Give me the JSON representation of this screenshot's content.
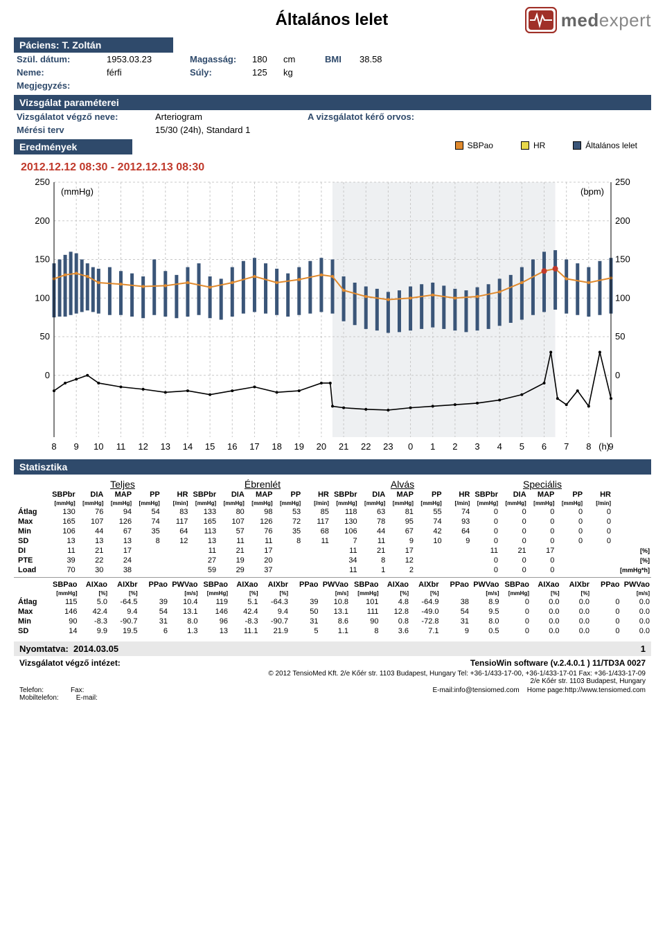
{
  "colors": {
    "bar_bg": "#2f4a6b",
    "sbpao": "#e08a2e",
    "hr": "#e8d84a",
    "general": "#3a5578",
    "range_text": "#c0392b",
    "logo_box": "#a03028",
    "grid": "#c8c8c8"
  },
  "header": {
    "title": "Általános lelet",
    "logo_text_a": "med",
    "logo_text_b": "expert"
  },
  "patient": {
    "bar": "Páciens: T. Zoltán",
    "birth_lbl": "Szül. dátum:",
    "birth": "1953.03.23",
    "gender_lbl": "Neme:",
    "gender": "férfi",
    "height_lbl": "Magasság:",
    "height": "180",
    "height_unit": "cm",
    "weight_lbl": "Súly:",
    "weight": "125",
    "weight_unit": "kg",
    "bmi_lbl": "BMI",
    "bmi": "38.58",
    "note_lbl": "Megjegyzés:"
  },
  "exam": {
    "bar": "Vizsgálat paraméterei",
    "examiner_lbl": "Vizsgálatot végző neve:",
    "examiner": "Arteriogram",
    "doctor_lbl": "A vizsgálatot kérő orvos:",
    "plan_lbl": "Mérési terv",
    "plan": "15/30 (24h), Standard 1"
  },
  "results": {
    "bar": "Eredmények",
    "legend": [
      {
        "label": "SBPao",
        "color": "#e08a2e"
      },
      {
        "label": "HR",
        "color": "#e8d84a"
      },
      {
        "label": "Általános lelet",
        "color": "#3a5578"
      }
    ]
  },
  "chart": {
    "range": "2012.12.12 08:30 - 2012.12.13 08:30",
    "left_unit": "(mmHg)",
    "right_unit": "(bpm)",
    "x_unit": "(h)",
    "xlim": [
      8,
      33
    ],
    "x_ticks": [
      8,
      9,
      10,
      11,
      12,
      13,
      14,
      15,
      16,
      17,
      18,
      19,
      20,
      21,
      22,
      23,
      0,
      1,
      2,
      3,
      4,
      5,
      6,
      7,
      8,
      9
    ],
    "left_ylim": [
      -80,
      250
    ],
    "left_ticks": [
      0,
      50,
      100,
      150,
      200,
      250
    ],
    "right_ylim": [
      -80,
      250
    ],
    "right_ticks": [
      0,
      50,
      100,
      150,
      200,
      250
    ],
    "shade": [
      20.5,
      30.5
    ],
    "bars": [
      {
        "x": 8.0,
        "lo": 75,
        "hi": 145
      },
      {
        "x": 8.25,
        "lo": 76,
        "hi": 150
      },
      {
        "x": 8.5,
        "lo": 76,
        "hi": 156
      },
      {
        "x": 8.75,
        "lo": 78,
        "hi": 160
      },
      {
        "x": 9.0,
        "lo": 80,
        "hi": 158
      },
      {
        "x": 9.25,
        "lo": 82,
        "hi": 150
      },
      {
        "x": 9.5,
        "lo": 84,
        "hi": 145
      },
      {
        "x": 9.75,
        "lo": 82,
        "hi": 140
      },
      {
        "x": 10.0,
        "lo": 80,
        "hi": 138
      },
      {
        "x": 10.5,
        "lo": 78,
        "hi": 140
      },
      {
        "x": 11.0,
        "lo": 78,
        "hi": 135
      },
      {
        "x": 11.5,
        "lo": 76,
        "hi": 132
      },
      {
        "x": 12.0,
        "lo": 74,
        "hi": 128
      },
      {
        "x": 12.5,
        "lo": 78,
        "hi": 150
      },
      {
        "x": 13.0,
        "lo": 76,
        "hi": 135
      },
      {
        "x": 13.5,
        "lo": 74,
        "hi": 130
      },
      {
        "x": 14.0,
        "lo": 76,
        "hi": 140
      },
      {
        "x": 14.5,
        "lo": 78,
        "hi": 145
      },
      {
        "x": 15.0,
        "lo": 74,
        "hi": 128
      },
      {
        "x": 15.5,
        "lo": 72,
        "hi": 125
      },
      {
        "x": 16.0,
        "lo": 76,
        "hi": 140
      },
      {
        "x": 16.5,
        "lo": 80,
        "hi": 148
      },
      {
        "x": 17.0,
        "lo": 82,
        "hi": 152
      },
      {
        "x": 17.5,
        "lo": 80,
        "hi": 145
      },
      {
        "x": 18.0,
        "lo": 78,
        "hi": 138
      },
      {
        "x": 18.5,
        "lo": 76,
        "hi": 132
      },
      {
        "x": 19.0,
        "lo": 78,
        "hi": 140
      },
      {
        "x": 19.5,
        "lo": 80,
        "hi": 148
      },
      {
        "x": 20.0,
        "lo": 82,
        "hi": 152
      },
      {
        "x": 20.5,
        "lo": 80,
        "hi": 150
      },
      {
        "x": 21.0,
        "lo": 70,
        "hi": 128
      },
      {
        "x": 21.5,
        "lo": 65,
        "hi": 120
      },
      {
        "x": 22.0,
        "lo": 60,
        "hi": 115
      },
      {
        "x": 22.5,
        "lo": 58,
        "hi": 112
      },
      {
        "x": 23.0,
        "lo": 55,
        "hi": 108
      },
      {
        "x": 23.5,
        "lo": 56,
        "hi": 110
      },
      {
        "x": 24.0,
        "lo": 58,
        "hi": 115
      },
      {
        "x": 24.5,
        "lo": 60,
        "hi": 118
      },
      {
        "x": 25.0,
        "lo": 62,
        "hi": 120
      },
      {
        "x": 25.5,
        "lo": 60,
        "hi": 116
      },
      {
        "x": 26.0,
        "lo": 58,
        "hi": 112
      },
      {
        "x": 26.5,
        "lo": 56,
        "hi": 110
      },
      {
        "x": 27.0,
        "lo": 58,
        "hi": 114
      },
      {
        "x": 27.5,
        "lo": 60,
        "hi": 118
      },
      {
        "x": 28.0,
        "lo": 64,
        "hi": 125
      },
      {
        "x": 28.5,
        "lo": 68,
        "hi": 130
      },
      {
        "x": 29.0,
        "lo": 72,
        "hi": 140
      },
      {
        "x": 29.5,
        "lo": 78,
        "hi": 150
      },
      {
        "x": 30.0,
        "lo": 82,
        "hi": 160
      },
      {
        "x": 30.5,
        "lo": 85,
        "hi": 162
      },
      {
        "x": 31.0,
        "lo": 80,
        "hi": 150
      },
      {
        "x": 31.5,
        "lo": 78,
        "hi": 145
      },
      {
        "x": 32.0,
        "lo": 76,
        "hi": 140
      },
      {
        "x": 32.5,
        "lo": 78,
        "hi": 148
      },
      {
        "x": 33.0,
        "lo": 80,
        "hi": 152
      }
    ],
    "sbpao": [
      [
        8,
        125
      ],
      [
        8.5,
        130
      ],
      [
        9,
        132
      ],
      [
        9.5,
        128
      ],
      [
        10,
        120
      ],
      [
        11,
        118
      ],
      [
        12,
        115
      ],
      [
        13,
        116
      ],
      [
        14,
        120
      ],
      [
        15,
        114
      ],
      [
        16,
        120
      ],
      [
        17,
        128
      ],
      [
        18,
        120
      ],
      [
        19,
        124
      ],
      [
        20,
        130
      ],
      [
        20.5,
        128
      ],
      [
        21,
        110
      ],
      [
        22,
        102
      ],
      [
        23,
        98
      ],
      [
        24,
        100
      ],
      [
        25,
        104
      ],
      [
        26,
        100
      ],
      [
        27,
        102
      ],
      [
        28,
        108
      ],
      [
        29,
        120
      ],
      [
        30,
        135
      ],
      [
        30.5,
        138
      ],
      [
        31,
        125
      ],
      [
        32,
        120
      ],
      [
        33,
        126
      ]
    ],
    "sbpao_dot": [
      [
        30,
        135
      ],
      [
        30.5,
        138
      ]
    ],
    "hr": [
      [
        8,
        -20
      ],
      [
        8.5,
        -10
      ],
      [
        9,
        -5
      ],
      [
        9.5,
        0
      ],
      [
        10,
        -10
      ],
      [
        11,
        -15
      ],
      [
        12,
        -18
      ],
      [
        13,
        -22
      ],
      [
        14,
        -20
      ],
      [
        15,
        -25
      ],
      [
        16,
        -20
      ],
      [
        17,
        -15
      ],
      [
        18,
        -22
      ],
      [
        19,
        -20
      ],
      [
        20,
        -10
      ],
      [
        20.4,
        -10
      ],
      [
        20.5,
        -40
      ],
      [
        21,
        -42
      ],
      [
        22,
        -44
      ],
      [
        23,
        -45
      ],
      [
        24,
        -42
      ],
      [
        25,
        -40
      ],
      [
        26,
        -38
      ],
      [
        27,
        -36
      ],
      [
        28,
        -32
      ],
      [
        29,
        -25
      ],
      [
        30,
        -10
      ],
      [
        30.3,
        30
      ],
      [
        30.6,
        -30
      ],
      [
        31,
        -38
      ],
      [
        31.5,
        -20
      ],
      [
        32,
        -40
      ],
      [
        32.5,
        30
      ],
      [
        33,
        -30
      ]
    ]
  },
  "stats": {
    "bar": "Statisztika",
    "groups": [
      "Teljes",
      "Ébrenlét",
      "Alvás",
      "Speciális"
    ],
    "t1": {
      "cols": [
        "SBPbr",
        "DIA",
        "MAP",
        "PP",
        "HR"
      ],
      "units": [
        "[mmHg]",
        "[mmHg]",
        "[mmHg]",
        "[mmHg]",
        "[/min]"
      ],
      "rows": [
        "Átlag",
        "Max",
        "Min",
        "SD",
        "DI",
        "PTE",
        "Load"
      ],
      "tail_units": [
        "",
        "",
        "",
        "",
        "[%]",
        "[%]",
        "[mmHg*h]"
      ],
      "data": {
        "Teljes": [
          [
            130,
            76,
            94,
            54,
            83
          ],
          [
            165,
            107,
            126,
            74,
            117
          ],
          [
            106,
            44,
            67,
            35,
            64
          ],
          [
            13,
            13,
            13,
            8,
            12
          ],
          [
            11,
            21,
            17,
            "",
            ""
          ],
          [
            39,
            22,
            24,
            "",
            ""
          ],
          [
            70,
            30,
            38,
            "",
            ""
          ]
        ],
        "Ébrenlét": [
          [
            133,
            80,
            98,
            53,
            85
          ],
          [
            165,
            107,
            126,
            72,
            117
          ],
          [
            113,
            57,
            76,
            35,
            68
          ],
          [
            13,
            11,
            11,
            8,
            11
          ],
          [
            11,
            21,
            17,
            "",
            ""
          ],
          [
            27,
            19,
            20,
            "",
            ""
          ],
          [
            59,
            29,
            37,
            "",
            ""
          ]
        ],
        "Alvás": [
          [
            118,
            63,
            81,
            55,
            74
          ],
          [
            130,
            78,
            95,
            74,
            93
          ],
          [
            106,
            44,
            67,
            42,
            64
          ],
          [
            7,
            11,
            9,
            10,
            9
          ],
          [
            11,
            21,
            17,
            "",
            ""
          ],
          [
            34,
            8,
            12,
            "",
            ""
          ],
          [
            11,
            1,
            2,
            "",
            ""
          ]
        ],
        "Speciális": [
          [
            0,
            0,
            0,
            0,
            0
          ],
          [
            0,
            0,
            0,
            0,
            0
          ],
          [
            0,
            0,
            0,
            0,
            0
          ],
          [
            0,
            0,
            0,
            0,
            0
          ],
          [
            11,
            21,
            17,
            "",
            ""
          ],
          [
            0,
            0,
            0,
            "",
            ""
          ],
          [
            0,
            0,
            0,
            "",
            ""
          ]
        ]
      }
    },
    "t2": {
      "cols": [
        "SBPao",
        "AIXao",
        "AIXbr",
        "PPao",
        "PWVao"
      ],
      "units": [
        "[mmHg]",
        "[%]",
        "[%]",
        "",
        "[m/s]"
      ],
      "rows": [
        "Átlag",
        "Max",
        "Min",
        "SD"
      ],
      "data": {
        "Teljes": [
          [
            115,
            "5.0",
            "-64.5",
            39,
            "10.4"
          ],
          [
            146,
            "42.4",
            "9.4",
            54,
            "13.1"
          ],
          [
            90,
            "-8.3",
            "-90.7",
            31,
            "8.0"
          ],
          [
            14,
            "9.9",
            "19.5",
            6,
            "1.3"
          ]
        ],
        "Ébrenlét": [
          [
            119,
            "5.1",
            "-64.3",
            39,
            "10.8"
          ],
          [
            146,
            "42.4",
            "9.4",
            50,
            "13.1"
          ],
          [
            96,
            "-8.3",
            "-90.7",
            31,
            "8.6"
          ],
          [
            13,
            "11.1",
            "21.9",
            5,
            "1.1"
          ]
        ],
        "Alvás": [
          [
            101,
            "4.8",
            "-64.9",
            38,
            "8.9"
          ],
          [
            111,
            "12.8",
            "-49.0",
            54,
            "9.5"
          ],
          [
            90,
            "0.8",
            "-72.8",
            31,
            "8.0"
          ],
          [
            8,
            "3.6",
            "7.1",
            9,
            "0.5"
          ]
        ],
        "Speciális": [
          [
            0,
            "0.0",
            "0.0",
            0,
            "0.0"
          ],
          [
            0,
            "0.0",
            "0.0",
            0,
            "0.0"
          ],
          [
            0,
            "0.0",
            "0.0",
            0,
            "0.0"
          ],
          [
            0,
            "0.0",
            "0.0",
            0,
            "0.0"
          ]
        ]
      }
    }
  },
  "footer": {
    "printed_lbl": "Nyomtatva:",
    "printed": "2014.03.05",
    "page": "1",
    "inst_lbl": "Vizsgálatot végző intézet:",
    "sw": "TensioWin software (v.2.4.0.1 ) 11/TD3A 0027",
    "copy": "© 2012 TensioMed Kft. 2/e Kőér str. 1103 Budapest, Hungary Tel: +36-1/433-17-00, +36-1/433-17-01 Fax: +36-1/433-17-09",
    "addr": "2/e Kőér str. 1103 Budapest, Hungary",
    "tel_lbl": "Telefon:",
    "fax_lbl": "Fax:",
    "mob_lbl": "Mobiltelefon:",
    "email_lbl": "E-mail:",
    "email": "E-mail:info@tensiomed.com",
    "home": "Home page:http://www.tensiomed.com"
  }
}
